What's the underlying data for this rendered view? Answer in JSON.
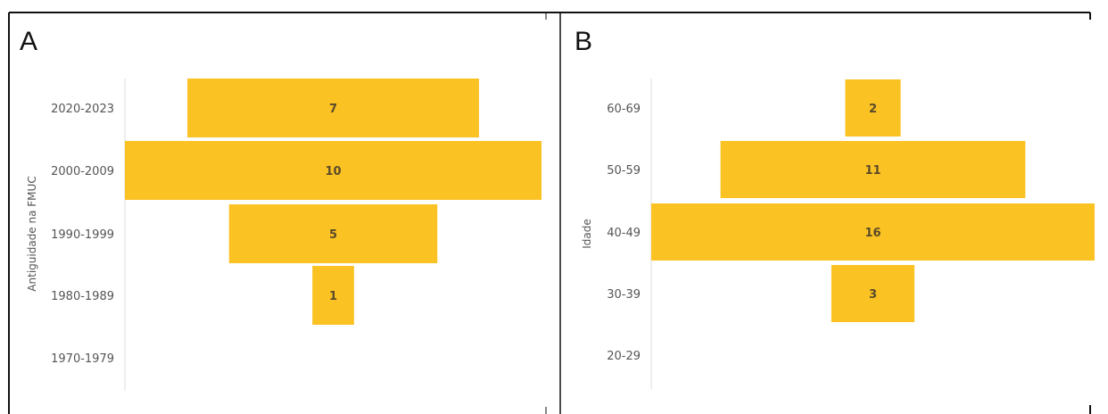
{
  "chart_data": [
    {
      "type": "bar",
      "orientation": "horizontal",
      "alignment": "centered",
      "panel_label": "A",
      "ylabel": "Antiguidade na FMUC",
      "categories": [
        "2020-2023",
        "2000-2009",
        "1990-1999",
        "1980-1989",
        "1970-1979"
      ],
      "values": [
        7,
        10,
        5,
        1,
        0
      ],
      "data_labels": [
        "7",
        "10",
        "5",
        "1",
        ""
      ],
      "max_value": 10,
      "color": "#fbc224",
      "grid": false,
      "legend": "none"
    },
    {
      "type": "bar",
      "orientation": "horizontal",
      "alignment": "centered",
      "panel_label": "B",
      "ylabel": "Idade",
      "categories": [
        "60-69",
        "50-59",
        "40-49",
        "30-39",
        "20-29"
      ],
      "values": [
        2,
        11,
        16,
        3,
        0
      ],
      "data_labels": [
        "2",
        "11",
        "16",
        "3",
        ""
      ],
      "max_value": 16,
      "color": "#fbc224",
      "grid": false,
      "legend": "none"
    }
  ]
}
